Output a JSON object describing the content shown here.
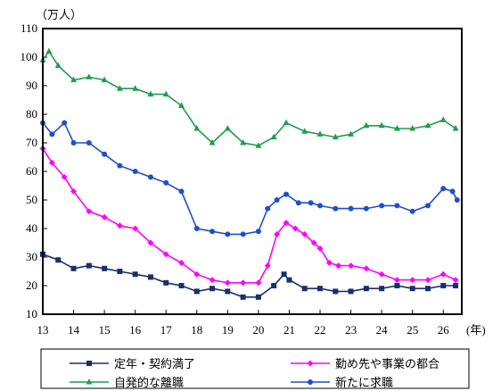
{
  "chart_data": {
    "type": "line",
    "y_unit_label": "（万人）",
    "x_unit_label": "(年)",
    "ylim": [
      10,
      110
    ],
    "yticks": [
      10,
      20,
      30,
      40,
      50,
      60,
      70,
      80,
      90,
      100,
      110
    ],
    "xlim": [
      13,
      26.6
    ],
    "xticks": [
      13,
      14,
      15,
      16,
      17,
      18,
      19,
      20,
      21,
      22,
      23,
      24,
      25,
      26
    ],
    "grid": false,
    "legend_position": "bottom",
    "series": [
      {
        "name": "定年・契約満了",
        "color": "#1a2f6b",
        "marker": "square",
        "points": [
          [
            13.0,
            31
          ],
          [
            13.5,
            29
          ],
          [
            14.0,
            26
          ],
          [
            14.5,
            27
          ],
          [
            15.0,
            26
          ],
          [
            15.5,
            25
          ],
          [
            16.0,
            24
          ],
          [
            16.5,
            23
          ],
          [
            17.0,
            21
          ],
          [
            17.5,
            20
          ],
          [
            18.0,
            18
          ],
          [
            18.5,
            19
          ],
          [
            19.0,
            18
          ],
          [
            19.5,
            16
          ],
          [
            20.0,
            16
          ],
          [
            20.5,
            20
          ],
          [
            20.83,
            24
          ],
          [
            21.0,
            22
          ],
          [
            21.5,
            19
          ],
          [
            22.0,
            19
          ],
          [
            22.5,
            18
          ],
          [
            23.0,
            18
          ],
          [
            23.5,
            19
          ],
          [
            24.0,
            19
          ],
          [
            24.5,
            20
          ],
          [
            25.0,
            19
          ],
          [
            25.5,
            19
          ],
          [
            26.0,
            20
          ],
          [
            26.4,
            20
          ]
        ]
      },
      {
        "name": "勤め先や事業の都合",
        "color": "#ff00ff",
        "marker": "diamond",
        "points": [
          [
            13.0,
            68
          ],
          [
            13.3,
            63
          ],
          [
            13.7,
            58
          ],
          [
            14.0,
            53
          ],
          [
            14.5,
            46
          ],
          [
            15.0,
            44
          ],
          [
            15.5,
            41
          ],
          [
            16.0,
            40
          ],
          [
            16.5,
            35
          ],
          [
            17.0,
            31
          ],
          [
            17.5,
            28
          ],
          [
            18.0,
            24
          ],
          [
            18.5,
            22
          ],
          [
            19.0,
            21
          ],
          [
            19.5,
            21
          ],
          [
            20.0,
            21
          ],
          [
            20.3,
            27
          ],
          [
            20.6,
            38
          ],
          [
            20.9,
            42
          ],
          [
            21.2,
            40
          ],
          [
            21.5,
            38
          ],
          [
            21.8,
            35
          ],
          [
            22.0,
            33
          ],
          [
            22.3,
            28
          ],
          [
            22.6,
            27
          ],
          [
            23.0,
            27
          ],
          [
            23.5,
            26
          ],
          [
            24.0,
            24
          ],
          [
            24.5,
            22
          ],
          [
            25.0,
            22
          ],
          [
            25.5,
            22
          ],
          [
            26.0,
            24
          ],
          [
            26.4,
            22
          ]
        ]
      },
      {
        "name": "自発的な離職",
        "color": "#1f9e4a",
        "marker": "triangle",
        "points": [
          [
            13.0,
            99
          ],
          [
            13.2,
            102
          ],
          [
            13.5,
            97
          ],
          [
            14.0,
            92
          ],
          [
            14.5,
            93
          ],
          [
            15.0,
            92
          ],
          [
            15.5,
            89
          ],
          [
            16.0,
            89
          ],
          [
            16.5,
            87
          ],
          [
            17.0,
            87
          ],
          [
            17.5,
            83
          ],
          [
            18.0,
            75
          ],
          [
            18.5,
            70
          ],
          [
            19.0,
            75
          ],
          [
            19.5,
            70
          ],
          [
            20.0,
            69
          ],
          [
            20.5,
            72
          ],
          [
            20.9,
            77
          ],
          [
            21.5,
            74
          ],
          [
            22.0,
            73
          ],
          [
            22.5,
            72
          ],
          [
            23.0,
            73
          ],
          [
            23.5,
            76
          ],
          [
            24.0,
            76
          ],
          [
            24.5,
            75
          ],
          [
            25.0,
            75
          ],
          [
            25.5,
            76
          ],
          [
            26.0,
            78
          ],
          [
            26.4,
            75
          ]
        ]
      },
      {
        "name": "新たに求職",
        "color": "#1f4fc8",
        "marker": "circle",
        "points": [
          [
            13.0,
            77
          ],
          [
            13.3,
            73
          ],
          [
            13.7,
            77
          ],
          [
            14.0,
            70
          ],
          [
            14.5,
            70
          ],
          [
            15.0,
            66
          ],
          [
            15.5,
            62
          ],
          [
            16.0,
            60
          ],
          [
            16.5,
            58
          ],
          [
            17.0,
            56
          ],
          [
            17.5,
            53
          ],
          [
            18.0,
            40
          ],
          [
            18.5,
            39
          ],
          [
            19.0,
            38
          ],
          [
            19.5,
            38
          ],
          [
            20.0,
            39
          ],
          [
            20.3,
            47
          ],
          [
            20.6,
            50
          ],
          [
            20.9,
            52
          ],
          [
            21.3,
            49
          ],
          [
            21.7,
            49
          ],
          [
            22.0,
            48
          ],
          [
            22.5,
            47
          ],
          [
            23.0,
            47
          ],
          [
            23.5,
            47
          ],
          [
            24.0,
            48
          ],
          [
            24.5,
            48
          ],
          [
            25.0,
            46
          ],
          [
            25.5,
            48
          ],
          [
            26.0,
            54
          ],
          [
            26.3,
            53
          ],
          [
            26.45,
            50
          ]
        ]
      }
    ]
  }
}
